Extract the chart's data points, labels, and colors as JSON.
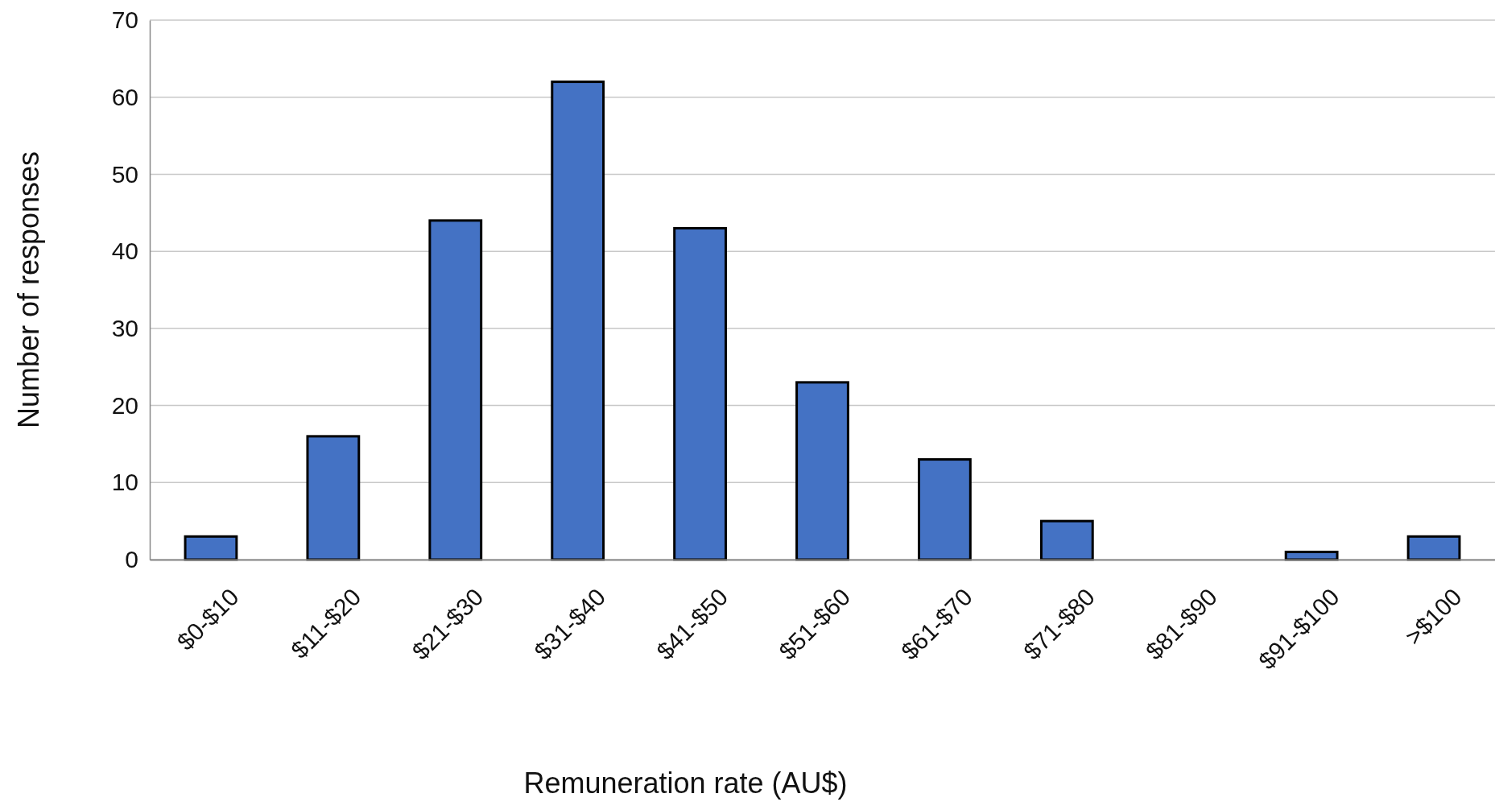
{
  "chart_data": {
    "type": "bar",
    "xlabel": "Remuneration rate (AU$)",
    "ylabel": "Number of responses",
    "categories": [
      "$0-$10",
      "$11-$20",
      "$21-$30",
      "$31-$40",
      "$41-$50",
      "$51-$60",
      "$61-$70",
      "$71-$80",
      "$81-$90",
      "$91-$100",
      ">$100"
    ],
    "values": [
      3,
      16,
      44,
      62,
      43,
      23,
      13,
      5,
      0,
      1,
      3
    ],
    "color": "#4472c4",
    "ylim": [
      0,
      70
    ],
    "yticks": [
      0,
      10,
      20,
      30,
      40,
      50,
      60,
      70
    ],
    "grid": "y"
  }
}
